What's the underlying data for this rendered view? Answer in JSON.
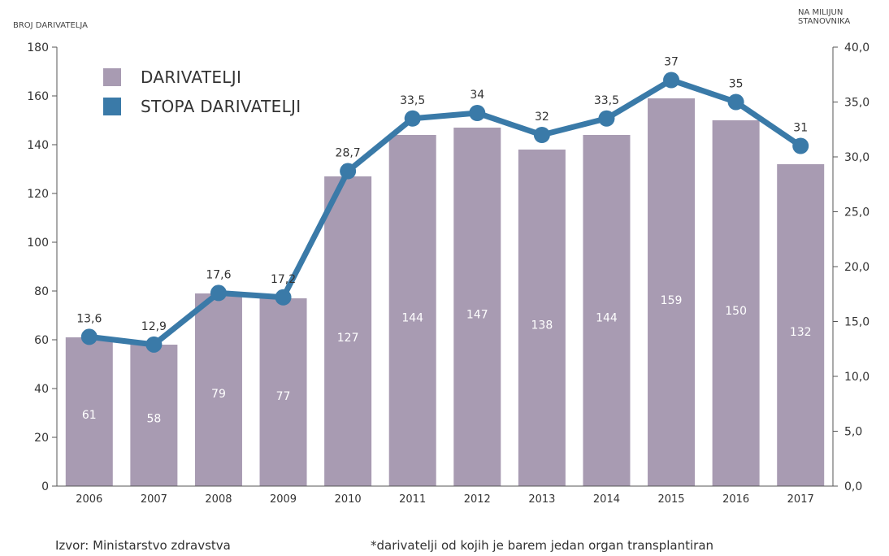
{
  "chart_data": {
    "type": "bar+line",
    "categories": [
      "2006",
      "2007",
      "2008",
      "2009",
      "2010",
      "2011",
      "2012",
      "2013",
      "2014",
      "2015",
      "2016",
      "2017"
    ],
    "series": [
      {
        "name": "DARIVATELJI",
        "type": "bar",
        "axis": "left",
        "values": [
          61,
          58,
          79,
          77,
          127,
          144,
          147,
          138,
          144,
          159,
          150,
          132
        ],
        "color": "#a89bb2"
      },
      {
        "name": "STOPA DARIVATELJI",
        "type": "line",
        "axis": "right",
        "values": [
          13.6,
          12.9,
          17.6,
          17.2,
          28.7,
          33.5,
          34,
          32,
          33.5,
          37,
          35,
          31
        ],
        "labels": [
          "13,6",
          "12,9",
          "17,6",
          "17,2",
          "28,7",
          "33,5",
          "34",
          "32",
          "33,5",
          "37",
          "35",
          "31"
        ],
        "color": "#3a7aa8"
      }
    ],
    "y_left": {
      "label": "BROJ DARIVATELJA",
      "ylim": [
        0,
        180
      ],
      "ticks": [
        0,
        20,
        40,
        60,
        80,
        100,
        120,
        140,
        160,
        180
      ],
      "tick_labels": [
        "0",
        "20",
        "40",
        "60",
        "80",
        "100",
        "120",
        "140",
        "160",
        "180"
      ]
    },
    "y_right": {
      "label": "NA MILIJUN STANOVNIKA",
      "ylim": [
        0,
        40
      ],
      "ticks": [
        0,
        5,
        10,
        15,
        20,
        25,
        30,
        35,
        40
      ],
      "tick_labels": [
        "0,0",
        "5,0",
        "10,0",
        "15,0",
        "20,0",
        "25,0",
        "30,0",
        "35,0",
        "40,0"
      ]
    },
    "legend": {
      "placement": "top-left",
      "entries": [
        "DARIVATELJI",
        "STOPA DARIVATELJI"
      ]
    },
    "grid": false
  },
  "footer": {
    "source": "Izvor: Ministarstvo zdravstva",
    "note": "*darivatelji od kojih je barem jedan organ transplantiran"
  }
}
